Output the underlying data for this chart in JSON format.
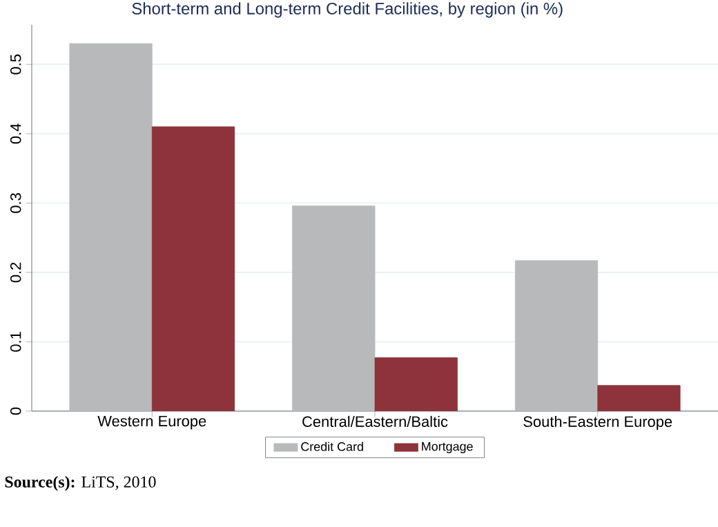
{
  "chart_data": {
    "type": "bar",
    "title": "Short-term and Long-term Credit Facilities, by region (in %)",
    "categories": [
      "Western Europe",
      "Central/Eastern/Baltic",
      "South-Eastern Europe"
    ],
    "series": [
      {
        "name": "Credit Card",
        "color": "#b8b9bb",
        "values": [
          0.53,
          0.296,
          0.217
        ]
      },
      {
        "name": "Mortgage",
        "color": "#8e323b",
        "values": [
          0.41,
          0.077,
          0.037
        ]
      }
    ],
    "ylim": [
      0,
      0.557
    ],
    "yticks": [
      0,
      0.1,
      0.2,
      0.3,
      0.4,
      0.5
    ],
    "grid": "y",
    "legend": "bottom",
    "annotations": [
      "**Source(s):** LiTS, 2010"
    ]
  }
}
